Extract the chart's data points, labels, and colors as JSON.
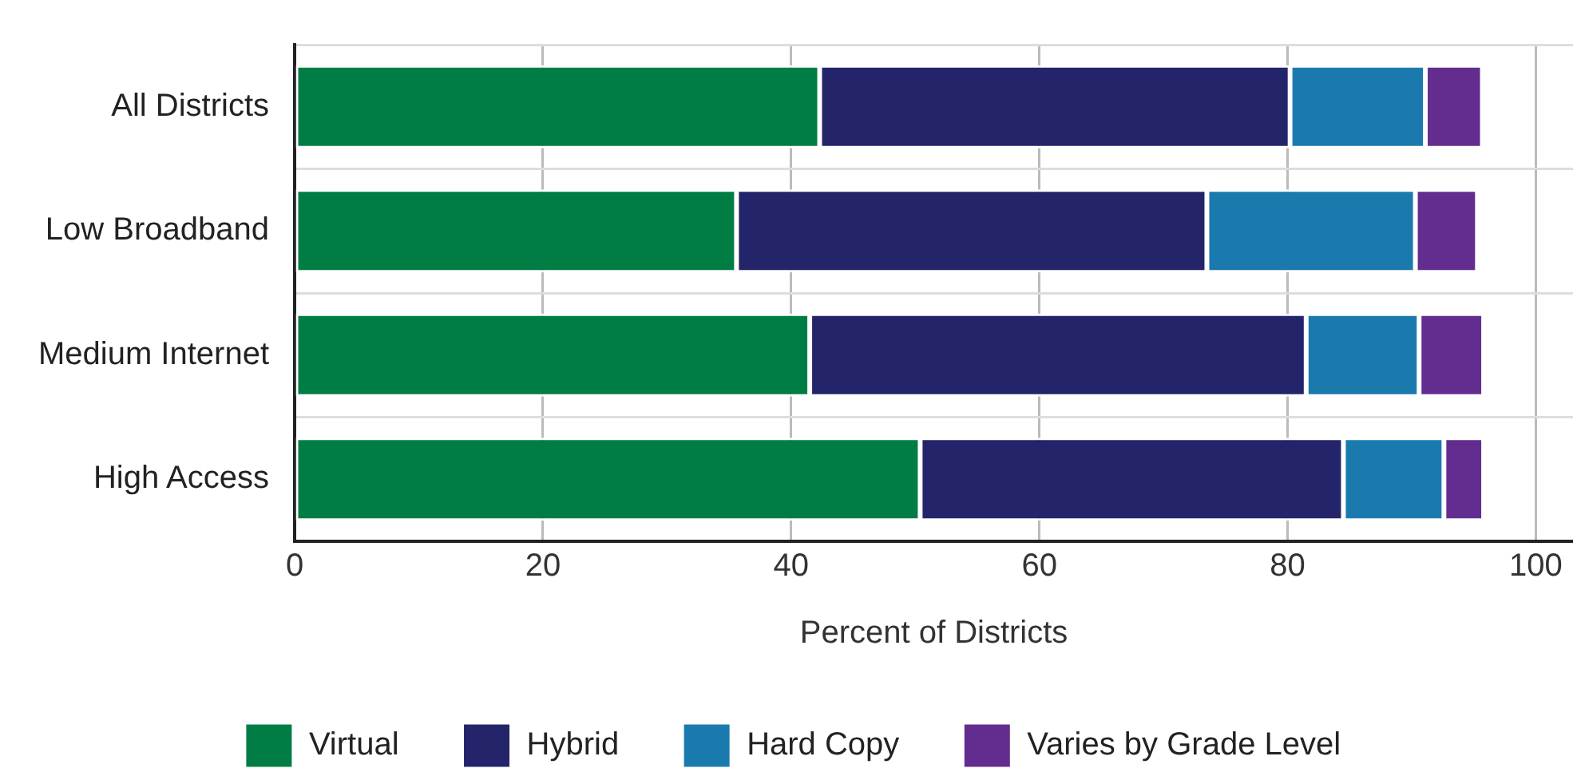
{
  "chart_data": {
    "type": "bar",
    "orientation": "horizontal",
    "stacked": true,
    "categories": [
      "All Districts",
      "Low Broadband",
      "Medium Internet",
      "High Access"
    ],
    "series": [
      {
        "name": "Virtual",
        "color": "#007d45",
        "values": [
          42.3,
          35.6,
          41.5,
          50.4
        ]
      },
      {
        "name": "Hybrid",
        "color": "#24246b",
        "values": [
          37.9,
          37.9,
          40.0,
          34.1
        ]
      },
      {
        "name": "Hard Copy",
        "color": "#1a7aad",
        "values": [
          10.9,
          16.8,
          9.1,
          8.1
        ]
      },
      {
        "name": "Varies by Grade Level",
        "color": "#622d8f",
        "values": [
          4.6,
          5.0,
          5.2,
          3.2
        ]
      }
    ],
    "xlabel": "Percent of Districts",
    "xlim": [
      0,
      103
    ],
    "xticks": [
      0,
      20,
      40,
      60,
      80,
      100
    ],
    "grid": true,
    "legend": "bottom"
  }
}
